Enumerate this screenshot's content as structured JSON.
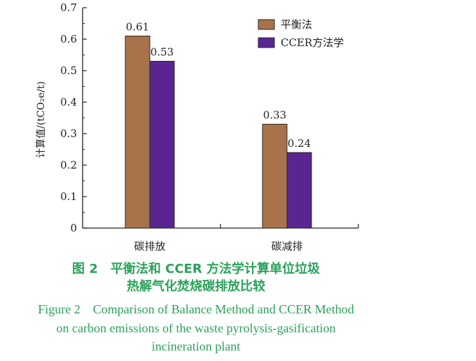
{
  "chart_data": {
    "type": "bar",
    "categories": [
      "碳排放",
      "碳减排"
    ],
    "series": [
      {
        "name": "平衡法",
        "values": [
          0.61,
          0.33
        ],
        "color": "#a8734a"
      },
      {
        "name": "CCER方法学",
        "values": [
          0.53,
          0.24
        ],
        "color": "#5b2591"
      }
    ],
    "data_labels": [
      [
        "0.61",
        "0.33"
      ],
      [
        "0.53",
        "0.24"
      ]
    ],
    "ylabel": "计算值/(tCO₂e/t)",
    "ylim": [
      0,
      0.7
    ],
    "yticks": [
      "0",
      "0.1",
      "0.2",
      "0.3",
      "0.4",
      "0.5",
      "0.6",
      "0.7"
    ],
    "legend_position": "top-right",
    "grid": false
  },
  "caption": {
    "cn_line1": "图 2　平衡法和 CCER 方法学计算单位垃圾",
    "cn_line2": "热解气化焚烧碳排放比较",
    "en_line1": "Figure 2　Comparison of Balance Method and CCER Method",
    "en_line2": "on carbon emissions of the waste pyrolysis-gasification",
    "en_line3": "incineration plant"
  }
}
